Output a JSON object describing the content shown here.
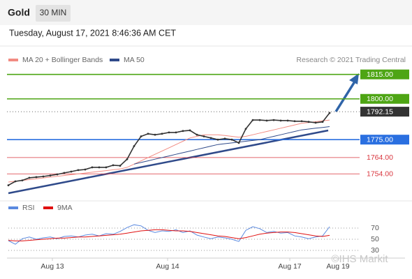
{
  "header": {
    "title": "Gold",
    "interval": "30 MIN",
    "timestamp": "Tuesday, August 17, 2021 8:46:36 AM CET",
    "source": "Research © 2021 Trading Central",
    "watermark": "©IHS Markit"
  },
  "chart_data": [
    {
      "type": "line",
      "x": [
        0,
        1,
        2,
        3,
        4,
        5,
        6,
        7,
        8,
        9,
        10,
        11,
        12,
        13,
        14,
        15,
        16,
        17,
        18,
        19,
        20,
        21,
        22,
        23,
        24,
        25,
        26,
        27,
        28,
        29,
        30,
        31,
        32,
        33,
        34,
        35,
        36,
        37,
        38,
        39,
        40,
        41,
        42,
        43,
        44,
        45,
        46
      ],
      "values": [
        1747,
        1749.4,
        1750,
        1751.6,
        1752,
        1752.4,
        1753,
        1753.7,
        1754.6,
        1755.4,
        1756.3,
        1756.7,
        1758,
        1758,
        1758,
        1759.3,
        1759,
        1763,
        1771,
        1777,
        1778.6,
        1778,
        1778.6,
        1779.4,
        1779.4,
        1780.3,
        1780.7,
        1778,
        1777,
        1776,
        1775,
        1775.6,
        1775,
        1773,
        1781.6,
        1787,
        1787,
        1786.7,
        1787,
        1786.7,
        1786.7,
        1786.3,
        1786.3,
        1785.9,
        1785.4,
        1785.9,
        1791.4
      ],
      "color": "#333333",
      "series": [
        {
          "name": "MA 20 + Bollinger Bands",
          "color": "#f28b82",
          "values": [
            1749,
            1749.5,
            1750,
            1750.5,
            1751,
            1751.5,
            1752,
            1752.5,
            1753,
            1753.5,
            1754,
            1754.5,
            1755,
            1755.5,
            1756,
            1756.5,
            1757,
            1758,
            1760,
            1762,
            1764,
            1766,
            1768,
            1770,
            1772,
            1774,
            1776,
            1777,
            1778,
            1778,
            1778,
            1777.5,
            1777,
            1776.5,
            1777,
            1778,
            1779,
            1780,
            1781,
            1782,
            1783,
            1784,
            1785,
            1785.5,
            1786,
            1786.5,
            1787
          ]
        },
        {
          "name": "MA 50",
          "color": "#2f4a8a",
          "values": [
            null,
            null,
            null,
            null,
            null,
            null,
            null,
            null,
            null,
            null,
            null,
            null,
            null,
            null,
            null,
            null,
            null,
            null,
            1760,
            1761,
            1762,
            1763,
            1764,
            1765,
            1766,
            1767,
            1768,
            1769,
            1770,
            1771,
            1772,
            1772.5,
            1773,
            1773.5,
            1774,
            1774.5,
            1775,
            1776,
            1777,
            1778,
            1779,
            1780,
            1781,
            1781.5,
            1782,
            1782.5,
            1783
          ]
        }
      ],
      "xlim": [
        0,
        50
      ],
      "ylim": [
        1740,
        1820
      ],
      "levels": [
        {
          "value": 1815,
          "label": "1815.00",
          "color": "#4ea514",
          "boxed": true
        },
        {
          "value": 1800,
          "label": "1800.00",
          "color": "#4ea514",
          "boxed": true
        },
        {
          "value": 1792.15,
          "label": "1792.15",
          "color": "#333333",
          "boxed": true
        },
        {
          "value": 1775,
          "label": "1775.00",
          "color": "#2a6fe0",
          "boxed": true
        },
        {
          "value": 1764,
          "label": "1764.00",
          "color": "#d9363e",
          "boxed": false
        },
        {
          "value": 1754,
          "label": "1754.00",
          "color": "#d9363e",
          "boxed": false
        }
      ]
    },
    {
      "type": "line",
      "x": [
        0,
        1,
        2,
        3,
        4,
        5,
        6,
        7,
        8,
        9,
        10,
        11,
        12,
        13,
        14,
        15,
        16,
        17,
        18,
        19,
        20,
        21,
        22,
        23,
        24,
        25,
        26,
        27,
        28,
        29,
        30,
        31,
        32,
        33,
        34,
        35,
        36,
        37,
        38,
        39,
        40,
        41,
        42,
        43,
        44,
        45,
        46
      ],
      "series": [
        {
          "name": "RSI",
          "color": "#5b8ae0",
          "values": [
            47.5,
            41,
            51,
            54,
            50,
            52.5,
            54,
            51,
            55,
            56,
            54,
            57.5,
            59,
            56,
            60,
            59,
            64,
            71,
            76,
            74,
            66,
            62,
            65,
            64,
            67,
            62,
            65,
            57.5,
            54,
            51,
            54,
            52.5,
            50,
            46,
            66,
            72.5,
            69,
            62,
            64,
            61,
            62,
            56,
            54,
            51,
            54,
            56,
            72.5
          ]
        },
        {
          "name": "9MA",
          "color": "#e01010",
          "values": [
            48,
            47,
            47,
            48,
            49,
            50,
            51,
            52,
            52,
            53,
            54,
            54,
            55,
            56,
            57,
            58,
            59,
            61,
            63,
            65,
            66,
            67,
            67,
            66,
            65,
            65,
            64,
            62,
            60,
            58,
            56,
            55,
            53,
            51,
            53,
            56,
            59,
            61,
            62,
            63,
            63,
            62,
            60,
            58,
            56,
            55,
            57
          ]
        }
      ],
      "xlim": [
        0,
        50
      ],
      "ylim": [
        15,
        90
      ],
      "yticks": [
        70,
        50,
        30
      ],
      "xticks": [
        {
          "value": 6.3,
          "label": "Aug 13"
        },
        {
          "value": 22.8,
          "label": "Aug 14"
        },
        {
          "value": 40.3,
          "label": "Aug 17"
        },
        {
          "value": 47.2,
          "label": "Aug 19"
        }
      ]
    }
  ]
}
